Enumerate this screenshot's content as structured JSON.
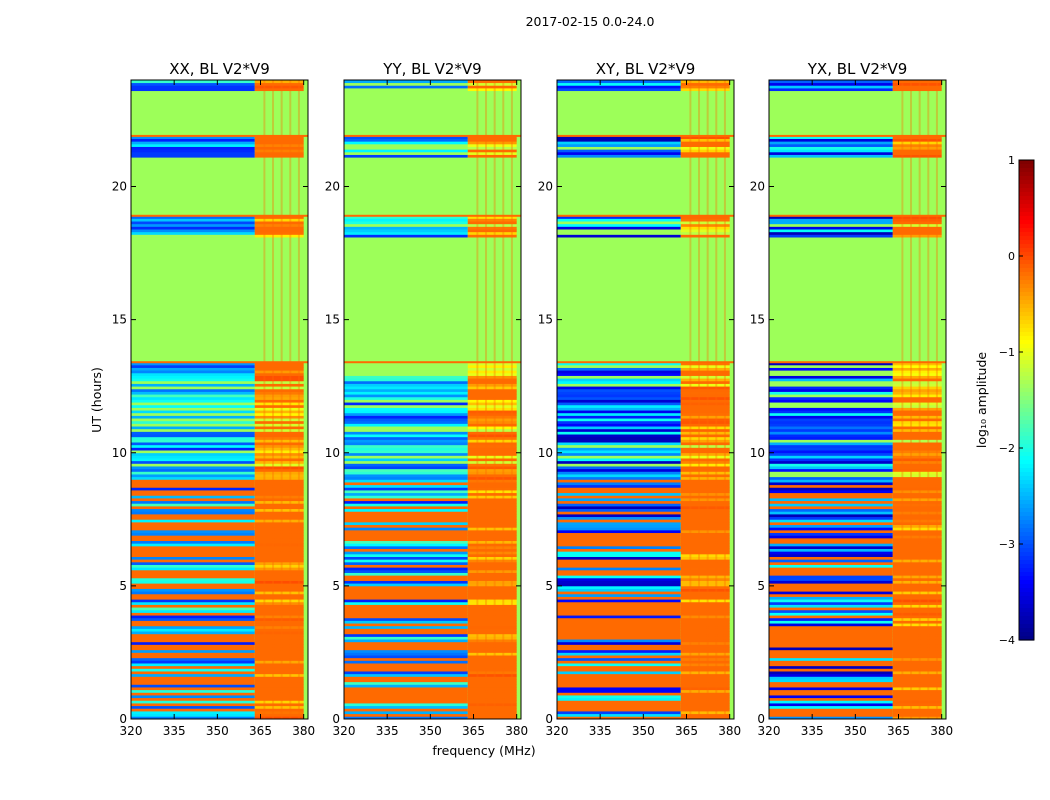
{
  "figure": {
    "suptitle": "2017-02-15 0.0-24.0"
  },
  "chart_data": {
    "type": "heatmap",
    "title": "2017-02-15 0.0-24.0",
    "xlabel": "frequency (MHz)",
    "ylabel": "UT (hours)",
    "xlim": [
      320,
      381.5
    ],
    "ylim": [
      0,
      24
    ],
    "xticks": [
      "320",
      "335",
      "350",
      "365",
      "380"
    ],
    "yticks": [
      "0",
      "5",
      "10",
      "15",
      "20"
    ],
    "panels": [
      {
        "title": "XX, BL V2*V9",
        "polarization": "XX"
      },
      {
        "title": "YY, BL V2*V9",
        "polarization": "YY"
      },
      {
        "title": "XY, BL V2*V9",
        "polarization": "XY"
      },
      {
        "title": "YX, BL V2*V9",
        "polarization": "YX"
      }
    ],
    "colorbar": {
      "label": "log₁₀ amplitude",
      "range": [
        -4,
        1
      ],
      "ticks": [
        "1",
        "0",
        "−1",
        "−2",
        "−3",
        "−4"
      ],
      "colormap": "jet"
    },
    "flagged_hours": [
      [
        13.4,
        18.15
      ],
      [
        18.9,
        21.05
      ],
      [
        21.9,
        23.6
      ]
    ],
    "rfi_band_mhz": [
      363,
      380
    ]
  },
  "colors": {
    "flagged": "#9dff59",
    "rfi_orange": "#ff6a00",
    "frame": "#000000"
  }
}
